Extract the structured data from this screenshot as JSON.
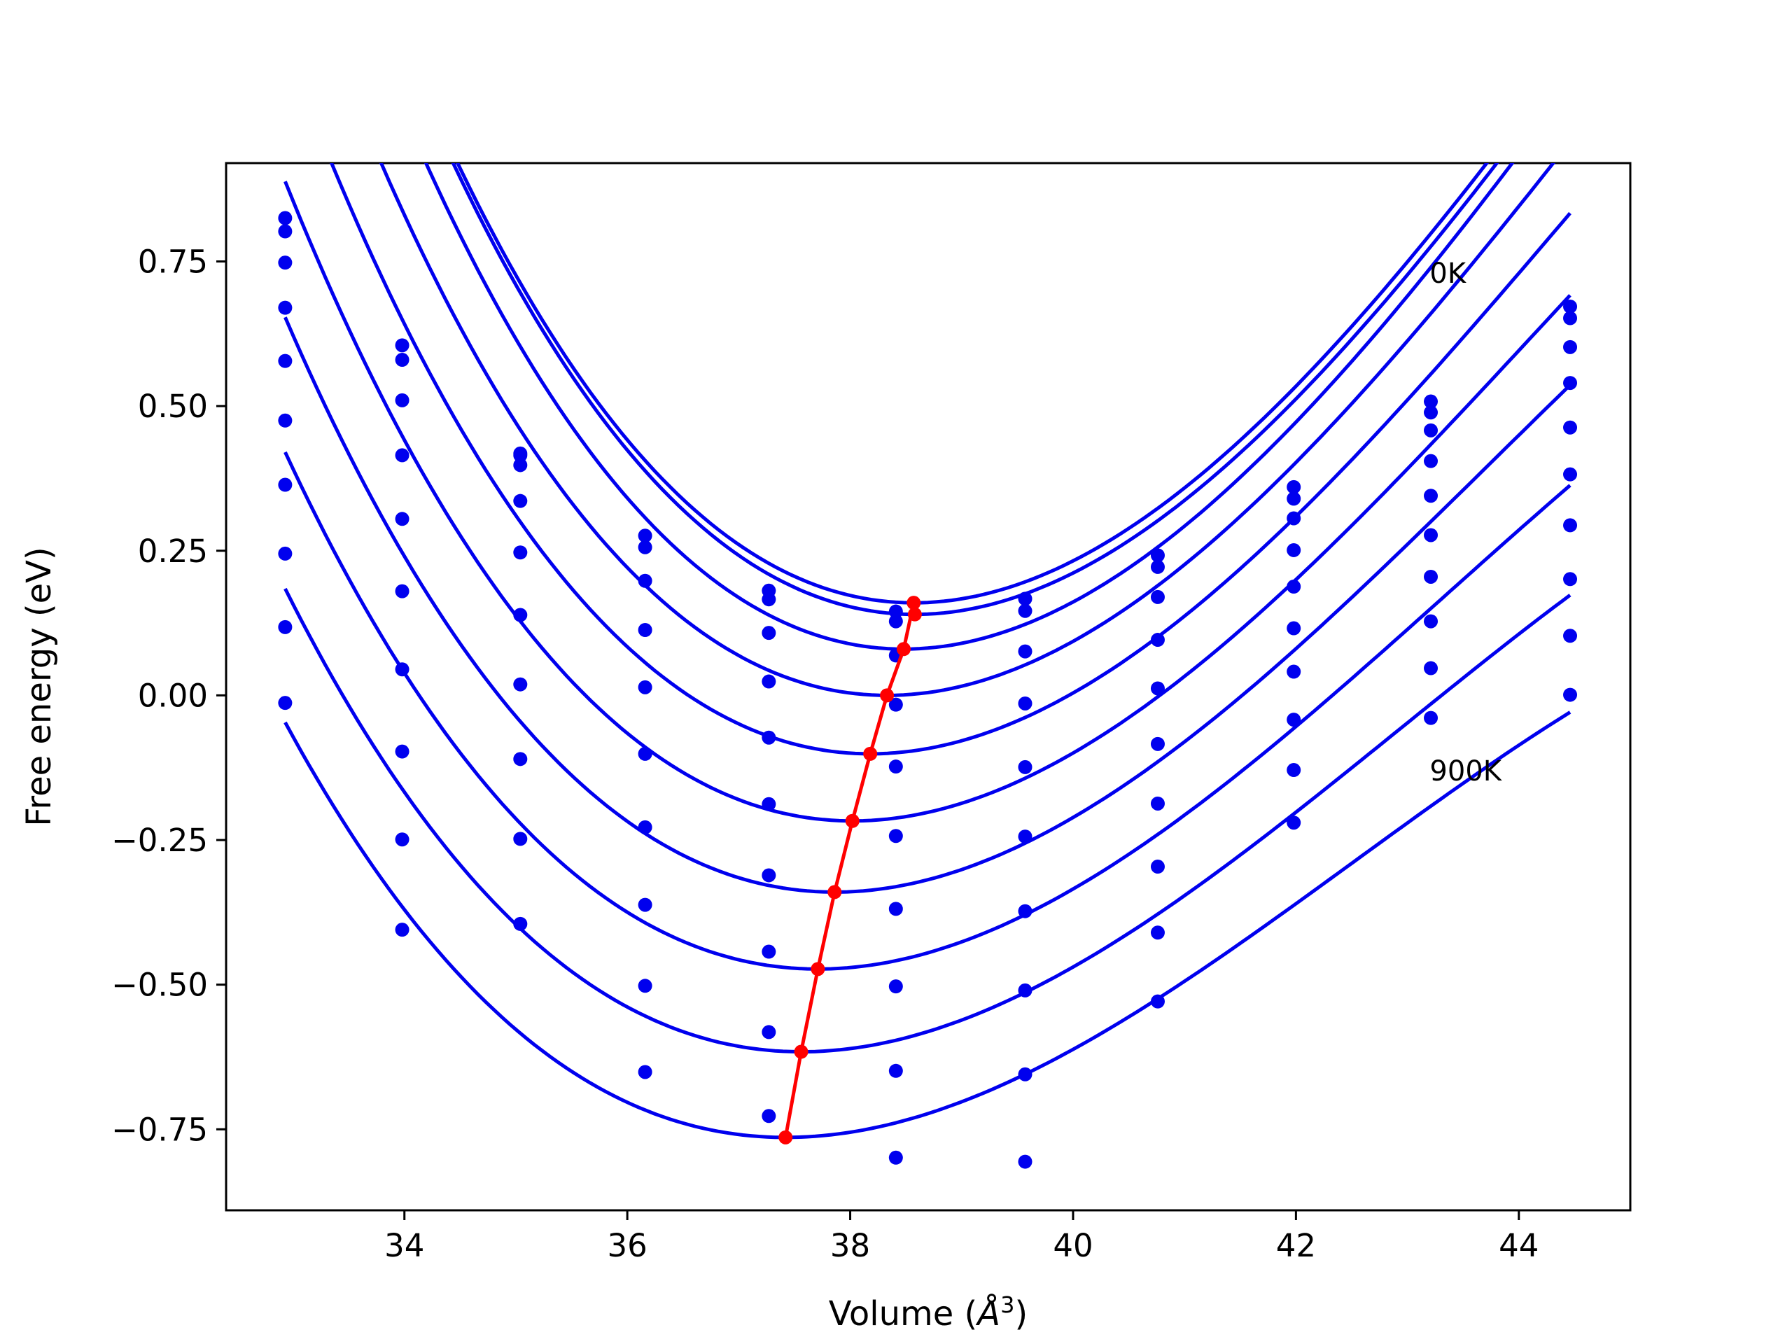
{
  "chart_data": {
    "type": "line",
    "xlabel_prefix": "Volume (",
    "xlabel_unit": "Å",
    "xlabel_exp": "3",
    "xlabel_suffix": ")",
    "ylabel": "Free energy (eV)",
    "xlim": [
      32.4,
      45.0
    ],
    "ylim": [
      -0.89,
      0.92
    ],
    "xticks": [
      34,
      36,
      38,
      40,
      42,
      44
    ],
    "xtick_labels": [
      "34",
      "36",
      "38",
      "40",
      "42",
      "44"
    ],
    "yticks": [
      -0.75,
      -0.5,
      -0.25,
      0.0,
      0.25,
      0.5,
      0.75
    ],
    "ytick_labels": [
      "−0.75",
      "−0.50",
      "−0.25",
      "0.00",
      "0.25",
      "0.50",
      "0.75"
    ],
    "grid": false,
    "annotations": [
      {
        "text": "0K",
        "x": 43.2,
        "y": 0.73
      },
      {
        "text": "900K",
        "x": 43.2,
        "y": -0.13
      }
    ],
    "volumes": [
      32.93,
      33.98,
      35.04,
      36.16,
      37.27,
      38.41,
      39.57,
      40.76,
      41.98,
      43.21,
      44.46
    ],
    "blue_color": "#0000ee",
    "red_color": "#ff0000",
    "series": [
      {
        "type": "points",
        "values": [
          0.825,
          0.605,
          0.418,
          0.276,
          0.181,
          0.145,
          0.167,
          0.242,
          0.36,
          0.508,
          0.672
        ]
      },
      {
        "type": "points",
        "values": [
          0.802,
          0.58,
          0.398,
          0.256,
          0.166,
          0.128,
          0.146,
          0.222,
          0.34,
          0.489,
          0.652
        ]
      },
      {
        "type": "points",
        "values": [
          0.748,
          0.51,
          0.415,
          0.198,
          0.108,
          0.069,
          0.076,
          0.17,
          0.306,
          0.458,
          0.602
        ]
      },
      {
        "type": "points",
        "values": [
          0.67,
          0.415,
          0.336,
          0.113,
          0.024,
          -0.016,
          -0.014,
          0.096,
          0.251,
          0.405,
          0.54
        ]
      },
      {
        "type": "points",
        "values": [
          0.578,
          0.305,
          0.247,
          0.014,
          -0.073,
          -0.123,
          -0.124,
          0.012,
          0.188,
          0.345,
          0.463
        ]
      },
      {
        "type": "points",
        "values": [
          0.475,
          0.18,
          0.139,
          -0.101,
          -0.188,
          -0.243,
          -0.244,
          -0.084,
          0.116,
          0.277,
          0.382
        ]
      },
      {
        "type": "points",
        "values": [
          0.364,
          0.045,
          0.019,
          -0.228,
          -0.311,
          -0.369,
          -0.373,
          -0.187,
          0.041,
          0.205,
          0.294
        ]
      },
      {
        "type": "points",
        "values": [
          0.245,
          -0.097,
          -0.11,
          -0.362,
          -0.443,
          -0.503,
          -0.51,
          -0.296,
          -0.042,
          0.128,
          0.201
        ]
      },
      {
        "type": "points",
        "values": [
          0.118,
          -0.249,
          -0.248,
          -0.502,
          -0.582,
          -0.649,
          -0.655,
          -0.41,
          -0.129,
          0.047,
          0.103
        ]
      },
      {
        "type": "points",
        "values": [
          -0.013,
          -0.405,
          -0.395,
          -0.651,
          -0.727,
          -0.799,
          -0.806,
          -0.529,
          -0.22,
          -0.039,
          0.001
        ]
      }
    ],
    "fits": [
      {
        "v0": 38.57,
        "e0": 0.16,
        "a": 0.038
      },
      {
        "v0": 38.58,
        "e0": 0.14,
        "a": 0.038
      },
      {
        "v0": 38.48,
        "e0": 0.08,
        "a": 0.038
      },
      {
        "v0": 38.33,
        "e0": 0.0,
        "a": 0.0365
      },
      {
        "v0": 38.18,
        "e0": -0.101,
        "a": 0.035
      },
      {
        "v0": 38.02,
        "e0": -0.217,
        "a": 0.0335
      },
      {
        "v0": 37.86,
        "e0": -0.34,
        "a": 0.032
      },
      {
        "v0": 37.71,
        "e0": -0.473,
        "a": 0.0305
      },
      {
        "v0": 37.56,
        "e0": -0.616,
        "a": 0.029
      },
      {
        "v0": 37.42,
        "e0": -0.764,
        "a": 0.0275
      }
    ],
    "minima": {
      "x": [
        38.58,
        38.57,
        38.48,
        38.33,
        38.18,
        38.02,
        37.86,
        37.71,
        37.56,
        37.42
      ],
      "y": [
        0.14,
        0.16,
        0.08,
        0.0,
        -0.101,
        -0.217,
        -0.34,
        -0.473,
        -0.616,
        -0.764
      ]
    }
  }
}
